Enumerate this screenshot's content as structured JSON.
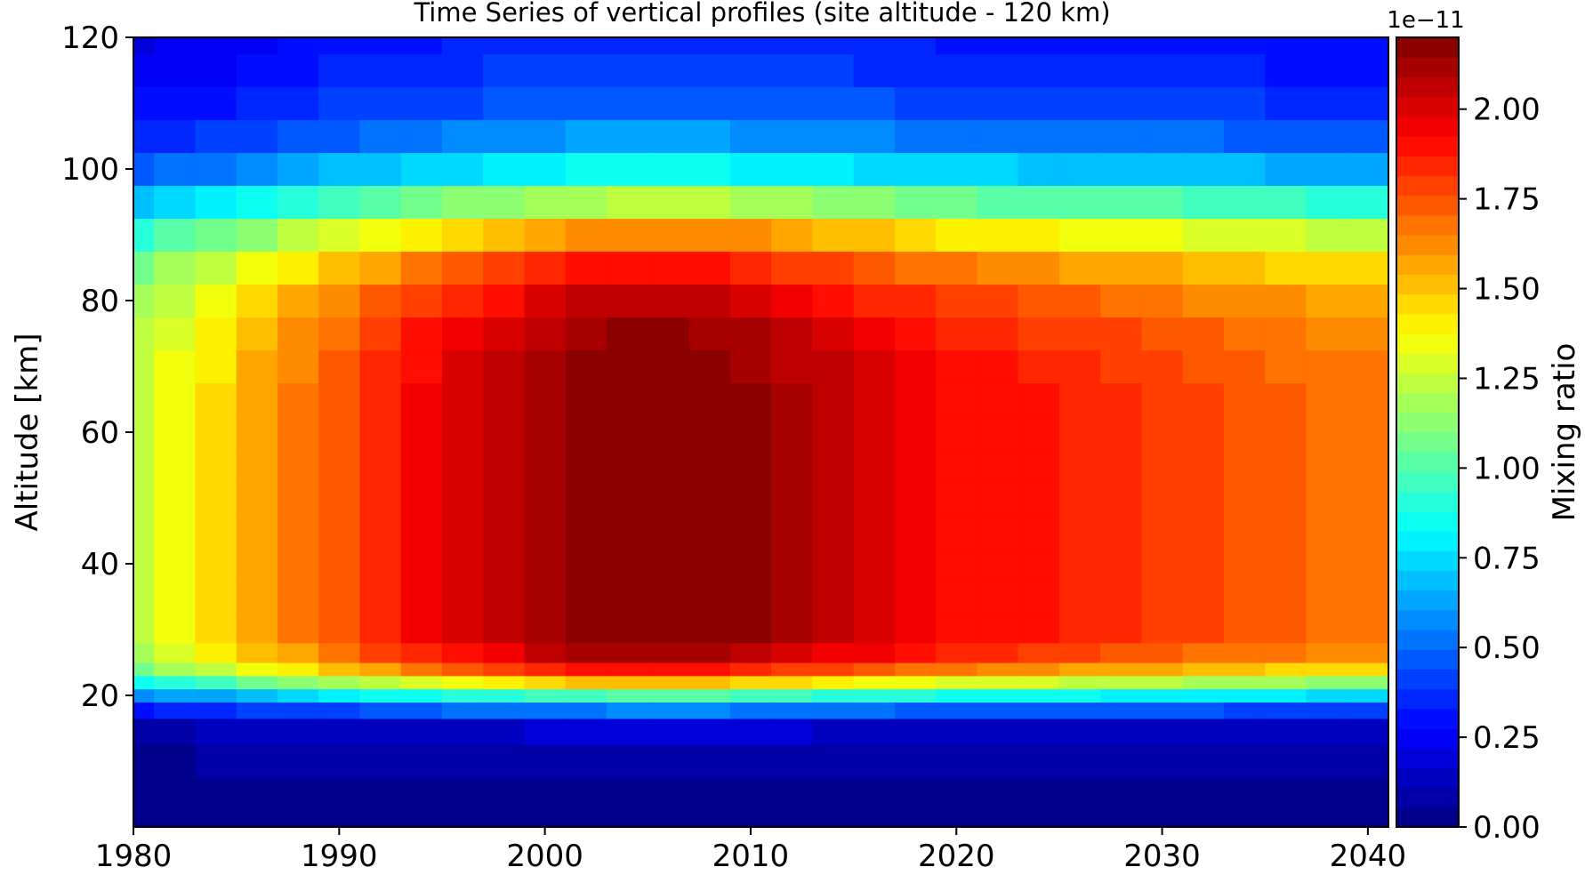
{
  "chart_data": {
    "type": "heatmap",
    "title": "Time Series of vertical profiles (site altitude - 120 km)",
    "xlabel": "",
    "ylabel": "Altitude [km]",
    "xlim": [
      1980,
      2041
    ],
    "ylim": [
      0,
      120
    ],
    "x_ticks": [
      "1980",
      "1990",
      "2000",
      "2010",
      "2020",
      "2030",
      "2040"
    ],
    "x_tick_values": [
      1980,
      1990,
      2000,
      2010,
      2020,
      2030,
      2040
    ],
    "y_ticks": [
      "20",
      "40",
      "60",
      "80",
      "100",
      "120"
    ],
    "y_tick_values": [
      20,
      40,
      60,
      80,
      100,
      120
    ],
    "x": [
      1980,
      1982,
      1984,
      1986,
      1988,
      1990,
      1992,
      1994,
      1996,
      1998,
      2000,
      2002,
      2004,
      2006,
      2008,
      2010,
      2012,
      2014,
      2016,
      2018,
      2020,
      2022,
      2024,
      2026,
      2028,
      2030,
      2032,
      2034,
      2036,
      2038,
      2040
    ],
    "y": [
      0,
      5,
      10,
      15,
      18,
      20,
      22,
      24,
      26,
      30,
      35,
      40,
      45,
      50,
      55,
      60,
      65,
      70,
      75,
      80,
      85,
      90,
      95,
      100,
      105,
      110,
      115,
      120
    ],
    "profile_shape": [
      0.01,
      0.02,
      0.04,
      0.08,
      0.25,
      0.45,
      0.68,
      0.86,
      0.96,
      1.0,
      1.0,
      1.0,
      1.0,
      1.0,
      1.0,
      1.0,
      1.0,
      0.99,
      0.97,
      0.93,
      0.86,
      0.74,
      0.55,
      0.38,
      0.28,
      0.22,
      0.19,
      0.17
    ],
    "peak_by_year": [
      1.26,
      1.36,
      1.44,
      1.56,
      1.66,
      1.75,
      1.84,
      1.93,
      2.0,
      2.06,
      2.13,
      2.19,
      2.22,
      2.22,
      2.2,
      2.16,
      2.11,
      2.06,
      2.01,
      1.96,
      1.92,
      1.9,
      1.87,
      1.85,
      1.82,
      1.8,
      1.77,
      1.75,
      1.72,
      1.69,
      1.67
    ],
    "value_unit_scale": "1e-11",
    "colorbar": {
      "label": "Mixing ratio",
      "offset_text": "1e−11",
      "ticks": [
        "0.00",
        "0.25",
        "0.50",
        "0.75",
        "1.00",
        "1.25",
        "1.50",
        "1.75",
        "2.00"
      ],
      "tick_values": [
        0,
        0.25,
        0.5,
        0.75,
        1.0,
        1.25,
        1.5,
        1.75,
        2.0
      ],
      "range": [
        0,
        2.2
      ],
      "levels": 40,
      "colormap": "jet"
    }
  }
}
